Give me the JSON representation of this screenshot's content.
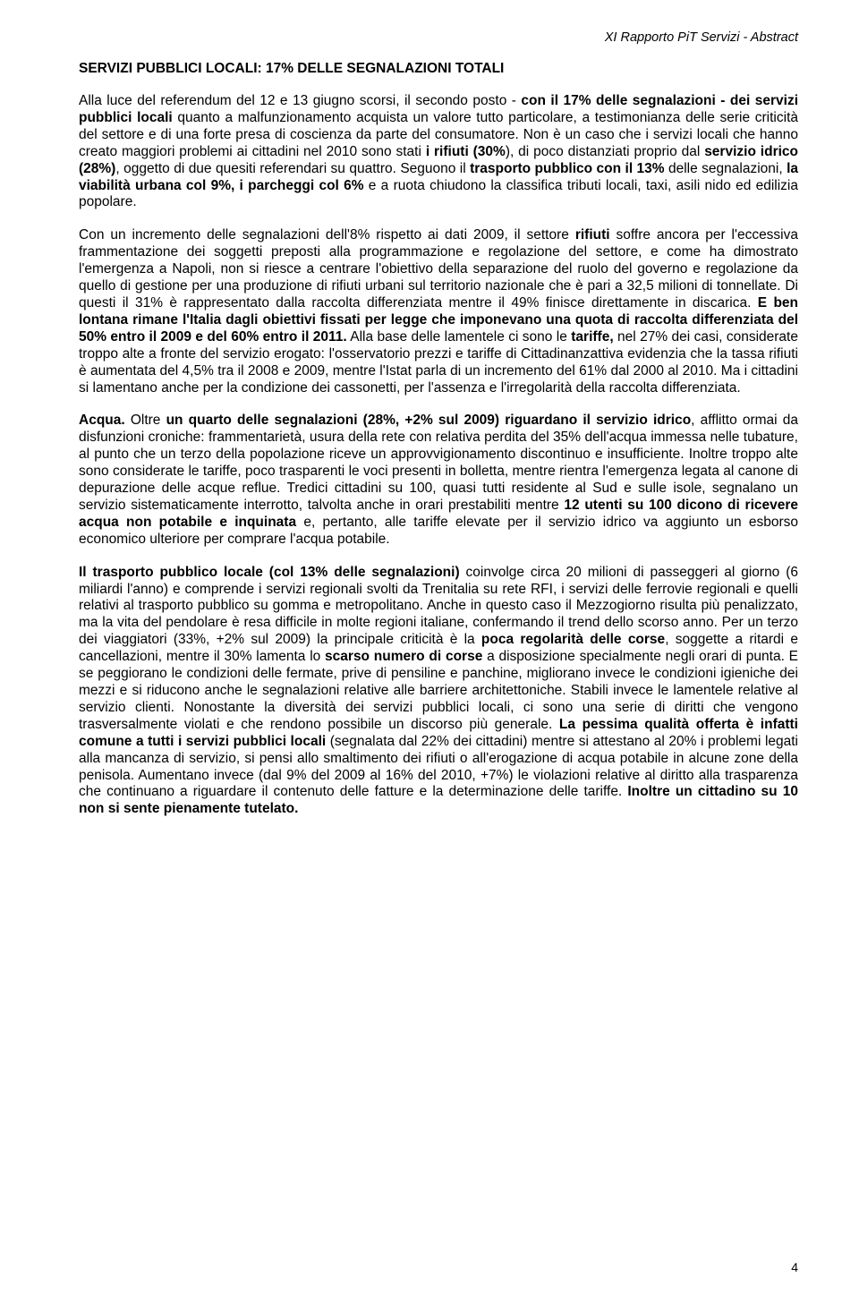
{
  "header": {
    "right": "XI Rapporto PiT Servizi - Abstract"
  },
  "title": "SERVIZI PUBBLICI LOCALI: 17% DELLE SEGNALAZIONI TOTALI",
  "p1": {
    "t1": "Alla luce del referendum del 12 e 13 giugno scorsi, il secondo posto - ",
    "b1": "con il 17% delle segnalazioni - dei servizi pubblici locali",
    "t2": " quanto a malfunzionamento acquista un valore tutto particolare, a testimonianza delle serie criticità del settore e di una forte presa di coscienza da parte del consumatore. Non è un caso che i servizi locali che hanno creato maggiori problemi ai cittadini nel 2010 sono stati ",
    "b2": "i rifiuti (30%",
    "t3": "), di poco distanziati proprio dal ",
    "b3": "servizio idrico (28%)",
    "t4": ", oggetto di due quesiti referendari su quattro. Seguono il ",
    "b4": "trasporto pubblico con il 13%",
    "t5": " delle segnalazioni, ",
    "b5": "la viabilità urbana col 9%, i parcheggi col 6%",
    "t6": " e a ruota chiudono la classifica tributi locali,  taxi, asili nido ed edilizia popolare."
  },
  "p2": {
    "t1": "Con un incremento delle segnalazioni dell'8% rispetto ai dati 2009, il settore ",
    "b1": "rifiuti",
    "t2": " soffre ancora per l'eccessiva frammentazione dei soggetti preposti alla programmazione e regolazione del settore, e come ha dimostrato l'emergenza a Napoli, non si riesce a centrare l'obiettivo della separazione del ruolo del governo e regolazione da quello di gestione per una produzione di rifiuti urbani sul territorio nazionale che è pari a 32,5 milioni di tonnellate. Di questi il 31% è rappresentato dalla raccolta differenziata mentre il 49% finisce direttamente in discarica. ",
    "b2": "E ben lontana rimane l'Italia dagli obiettivi fissati per legge che imponevano una quota di raccolta differenziata del 50% entro il 2009 e del 60% entro il 2011.",
    "t3": " Alla base delle lamentele ci sono le ",
    "b3": "tariffe,",
    "t4": " nel 27% dei casi, considerate troppo alte a fronte del servizio erogato: l'osservatorio prezzi e tariffe di Cittadinanzattiva evidenzia che la tassa rifiuti è aumentata del 4,5% tra il 2008 e 2009, mentre l'Istat parla di un incremento del 61% dal 2000 al 2010. Ma i cittadini si lamentano anche per la condizione dei cassonetti, per l'assenza e l'irregolarità della raccolta differenziata."
  },
  "p3": {
    "b1": "Acqua.",
    "t1": " Oltre ",
    "b2": "un quarto delle segnalazioni (28%, +2% sul 2009) riguardano il servizio idrico",
    "t2": ", afflitto ormai da disfunzioni croniche: frammentarietà, usura della rete con relativa perdita del 35% dell'acqua immessa nelle tubature, al punto che un terzo della popolazione riceve un approvvigionamento discontinuo e insufficiente. Inoltre troppo alte sono considerate le tariffe, poco trasparenti le voci presenti in bolletta, mentre rientra l'emergenza legata al canone di depurazione delle acque reflue. Tredici cittadini su 100, quasi tutti residente al Sud e sulle isole, segnalano un servizio sistematicamente interrotto, talvolta anche in orari prestabiliti mentre ",
    "b3": "12 utenti su 100 dicono di ricevere acqua non potabile e inquinata",
    "t3": " e, pertanto, alle tariffe elevate per il servizio idrico va aggiunto un esborso economico ulteriore per comprare l'acqua potabile."
  },
  "p4": {
    "b1": "Il trasporto pubblico locale (col 13% delle segnalazioni)",
    "t1": " coinvolge circa 20 milioni di passeggeri al giorno (6 miliardi l'anno) e comprende i servizi regionali svolti da Trenitalia su rete RFI, i servizi delle ferrovie regionali e quelli relativi al trasporto pubblico su gomma e metropolitano. Anche in questo caso il Mezzogiorno risulta più penalizzato, ma la vita del pendolare è resa difficile in molte regioni italiane, confermando il trend dello scorso anno. Per un terzo dei viaggiatori (33%, +2% sul 2009) la principale criticità è la ",
    "b2": "poca regolarità delle corse",
    "t2": ", soggette a ritardi e cancellazioni, mentre il 30% lamenta lo ",
    "b3": "scarso numero di corse",
    "t3": " a disposizione specialmente negli orari di punta. E se peggiorano le condizioni delle fermate, prive di pensiline e panchine, migliorano invece le condizioni igieniche dei mezzi e si riducono anche le segnalazioni relative alle barriere architettoniche. Stabili invece le lamentele relative al servizio clienti. Nonostante la diversità dei servizi pubblici locali, ci sono una serie di diritti che vengono trasversalmente violati e che rendono possibile un discorso più generale. ",
    "b4": "La pessima qualità offerta è infatti comune a tutti i servizi pubblici locali",
    "t4": " (segnalata dal 22% dei cittadini) mentre si attestano al 20% i problemi legati alla mancanza di servizio, si pensi allo smaltimento dei rifiuti o all'erogazione di acqua potabile in alcune zone della penisola. Aumentano invece (dal 9% del 2009 al 16% del 2010, +7%) le violazioni relative al diritto alla trasparenza che continuano a riguardare il contenuto delle fatture e la determinazione delle tariffe. ",
    "b5": "Inoltre un cittadino su 10 non si sente pienamente tutelato."
  },
  "pageNumber": "4"
}
